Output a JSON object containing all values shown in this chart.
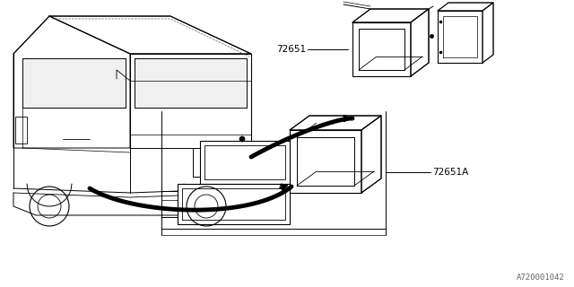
{
  "bg_color": "#ffffff",
  "line_color": "#000000",
  "part_label_1": "72651",
  "part_label_2": "72651A",
  "diagram_code": "A720001042",
  "fig_width": 6.4,
  "fig_height": 3.2,
  "dpi": 100,
  "car_color": "#000000",
  "arrow_color": "#000000",
  "label_color": "#000000"
}
